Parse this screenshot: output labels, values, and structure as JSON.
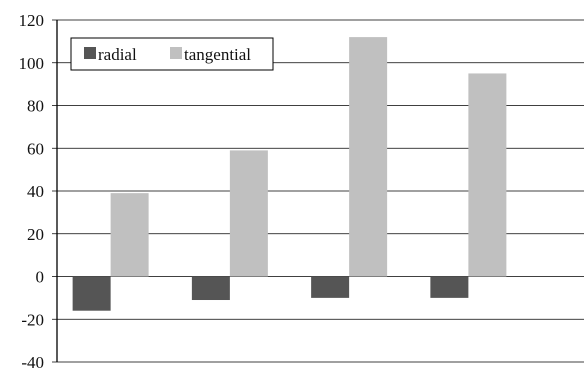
{
  "chart_data": {
    "type": "bar",
    "categories": [
      "",
      "",
      "",
      ""
    ],
    "series": [
      {
        "name": "radial",
        "color": "#555555",
        "values": [
          -16,
          -11,
          -10,
          -10
        ]
      },
      {
        "name": "tangential",
        "color": "#c0c0c0",
        "values": [
          39,
          59,
          112,
          95
        ]
      }
    ],
    "title": "",
    "xlabel": "",
    "ylabel": "",
    "ylim": [
      -40,
      120
    ],
    "yticks": [
      "-40",
      "-20",
      "0",
      "20",
      "40",
      "60",
      "80",
      "100",
      "120"
    ],
    "grid": true,
    "legend": {
      "position": "top-left",
      "entries": [
        "radial",
        "tangential"
      ]
    }
  }
}
